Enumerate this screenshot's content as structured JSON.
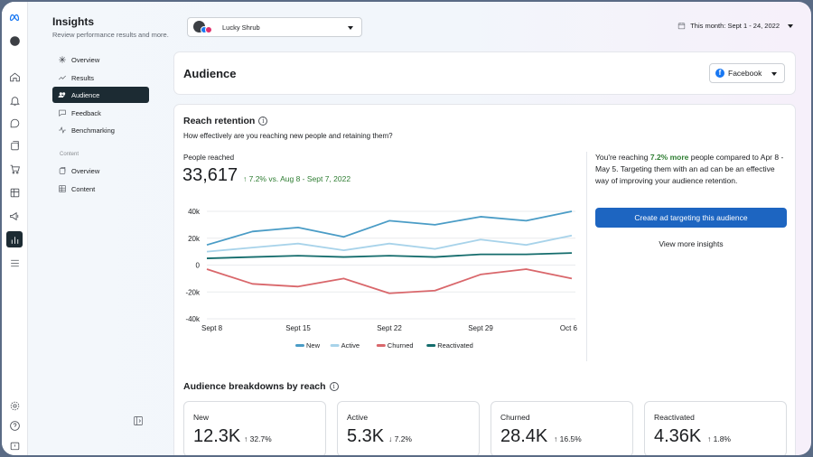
{
  "sidebar": {
    "title": "Insights",
    "subtitle": "Review performance results and more.",
    "items": [
      {
        "label": "Overview"
      },
      {
        "label": "Results"
      },
      {
        "label": "Audience"
      },
      {
        "label": "Feedback"
      },
      {
        "label": "Benchmarking"
      }
    ],
    "content_group": "Content",
    "content_items": [
      {
        "label": "Overview"
      },
      {
        "label": "Content"
      }
    ]
  },
  "topbar": {
    "page_name": "Lucky Shrub",
    "date_range": "This month: Sept 1 - 24, 2022"
  },
  "audience": {
    "title": "Audience",
    "platform": "Facebook"
  },
  "reach": {
    "title": "Reach retention",
    "subtitle": "How effectively are you reaching new people and retaining them?",
    "metric_label": "People reached",
    "metric_value": "33,617",
    "metric_delta": "↑ 7.2% vs. Aug 8 - Sept 7, 2022",
    "insight_prefix": "You're reaching ",
    "insight_highlight": "7.2% more",
    "insight_suffix": " people compared to Apr 8 - May 5. Targeting them with an ad can be an effective way of improving your audience retention.",
    "cta_label": "Create ad targeting this audience",
    "link_label": "View more insights"
  },
  "chart_data": {
    "type": "line",
    "title": "",
    "xlabel": "",
    "ylabel": "",
    "x": [
      "Sept 8",
      "Sept 11",
      "Sept 15",
      "Sept 18",
      "Sept 22",
      "Sept 25",
      "Sept 29",
      "Oct 2",
      "Oct 6"
    ],
    "xtick_labels": [
      "Sept 8",
      "Sept 15",
      "Sept 22",
      "Sept 29",
      "Oct 6"
    ],
    "ytick_labels": [
      "40k",
      "20k",
      "0",
      "-20k",
      "-40k"
    ],
    "ylim": [
      -40000,
      40000
    ],
    "series": [
      {
        "name": "New",
        "color": "#4a9cc6",
        "values": [
          15000,
          25000,
          28000,
          21000,
          33000,
          30000,
          36000,
          33000,
          40000
        ]
      },
      {
        "name": "Active",
        "color": "#a8d3ea",
        "values": [
          10000,
          13000,
          16000,
          11000,
          16000,
          12000,
          19000,
          15000,
          22000
        ]
      },
      {
        "name": "Churned",
        "color": "#d9676b",
        "values": [
          -3000,
          -14000,
          -16000,
          -10000,
          -21000,
          -19000,
          -7000,
          -3000,
          -10000
        ]
      },
      {
        "name": "Reactivated",
        "color": "#146c6c",
        "values": [
          5000,
          6000,
          7000,
          6000,
          7000,
          6000,
          8000,
          8000,
          9000
        ]
      }
    ],
    "legend": "bottom"
  },
  "breakdowns": {
    "title": "Audience breakdowns by reach",
    "cards": [
      {
        "label": "New",
        "value": "12.3K",
        "delta": "↑ 32.7%"
      },
      {
        "label": "Active",
        "value": "5.3K",
        "delta": "↓ 7.2%"
      },
      {
        "label": "Churned",
        "value": "28.4K",
        "delta": "↑ 16.5%"
      },
      {
        "label": "Reactivated",
        "value": "4.36K",
        "delta": "↑ 1.8%"
      }
    ]
  }
}
